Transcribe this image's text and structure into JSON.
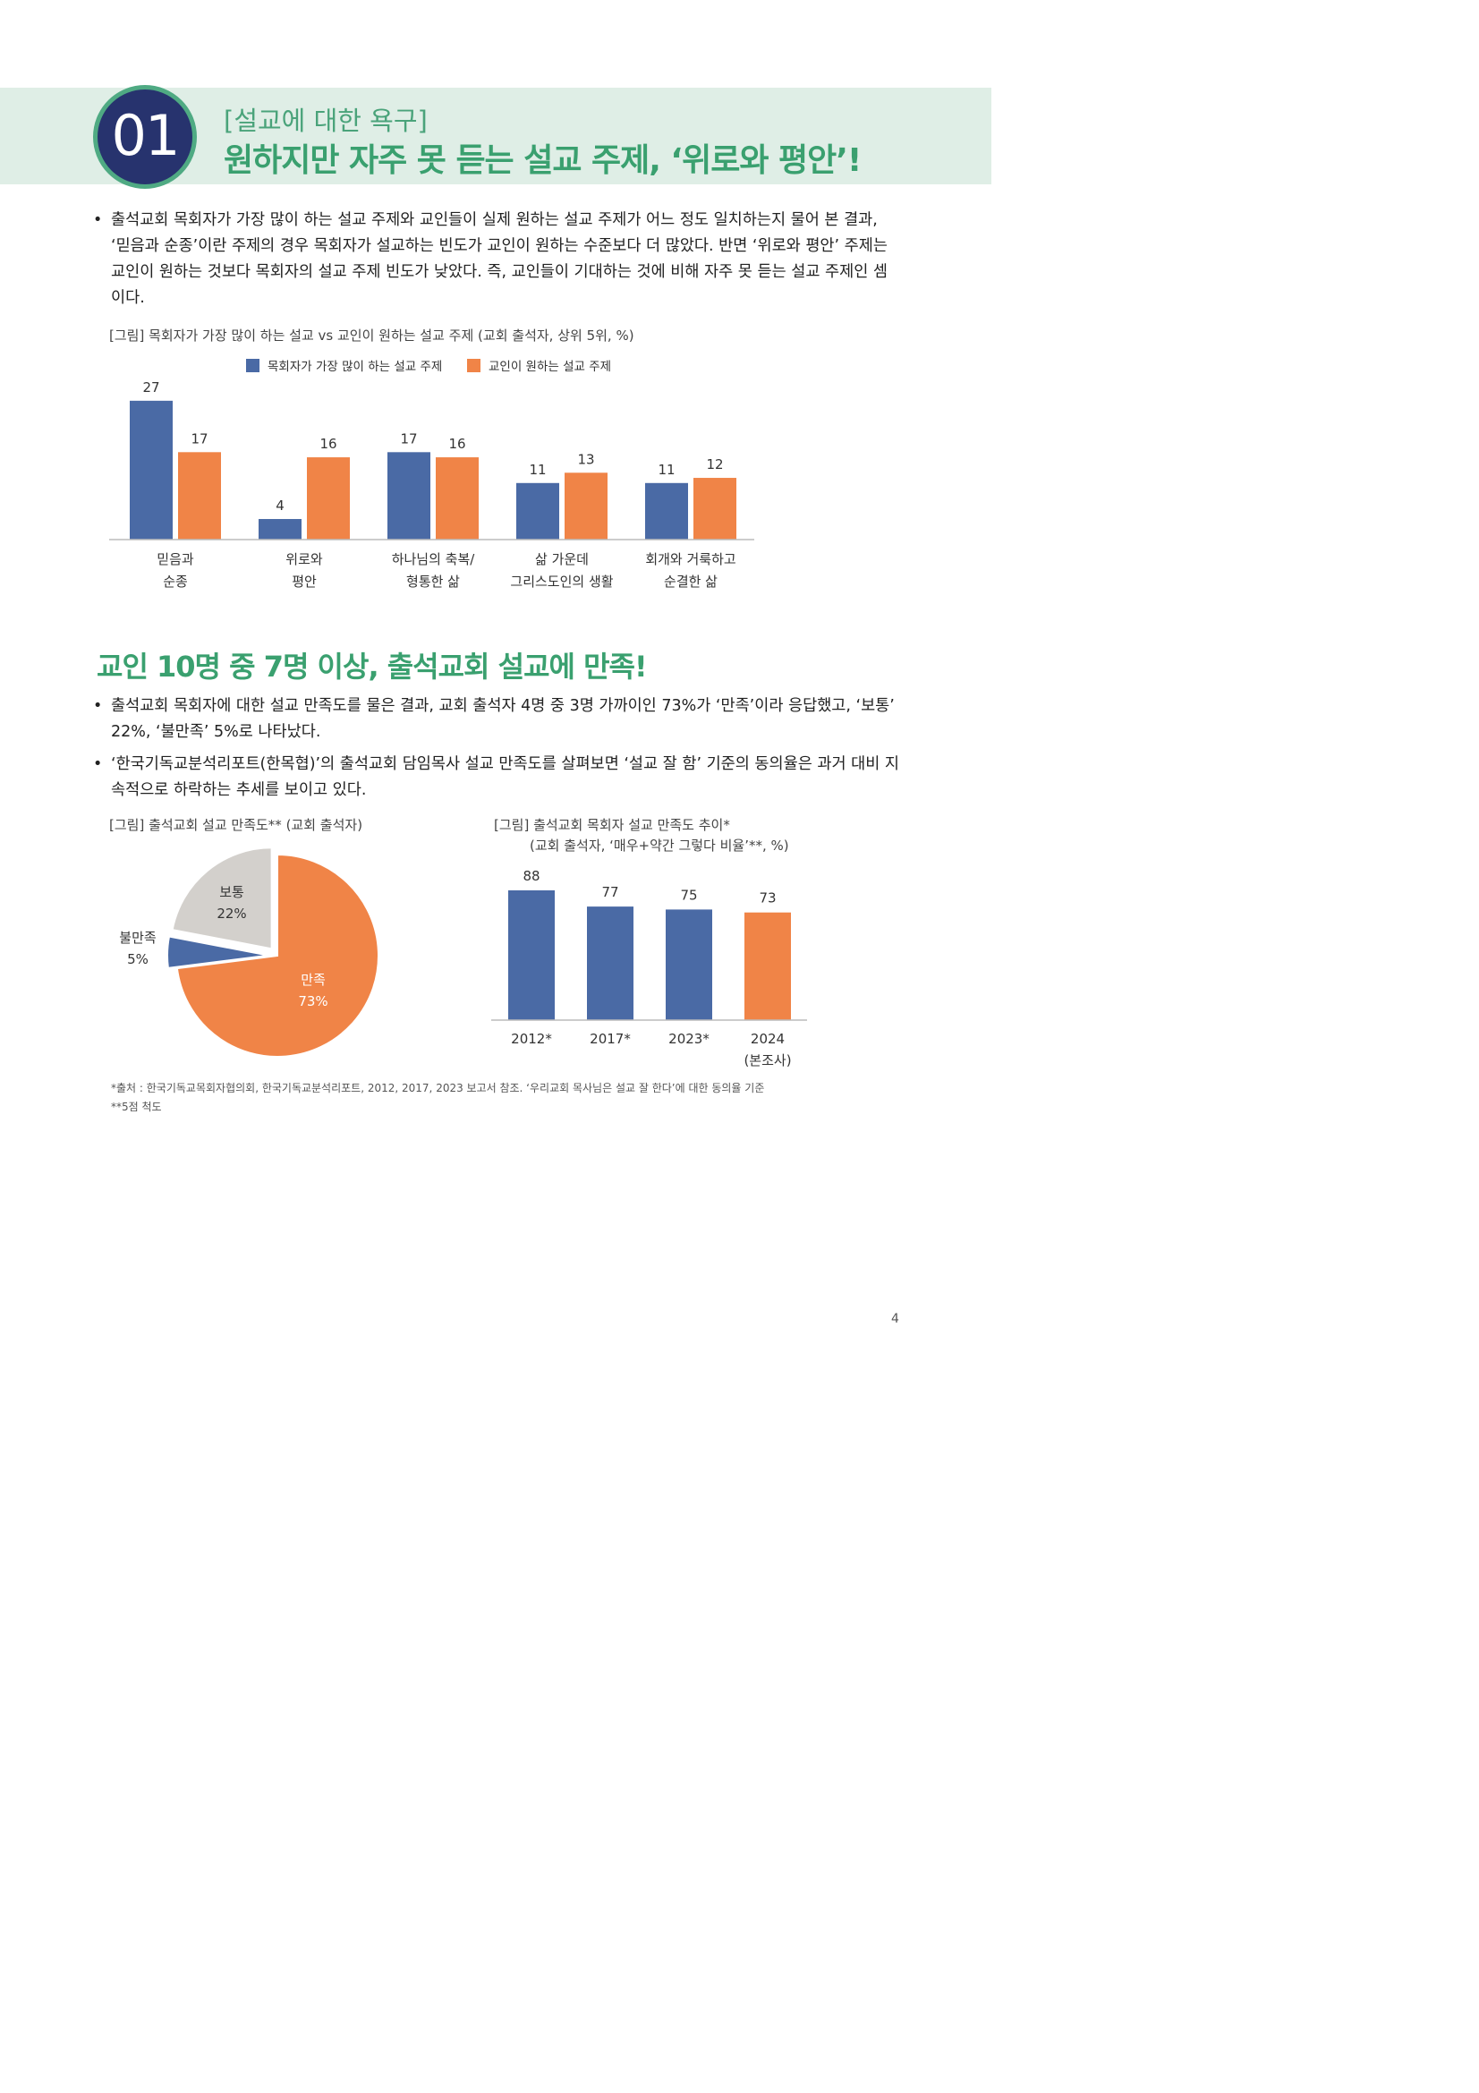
{
  "header": {
    "badge": "01",
    "subtitle": "[설교에 대한 욕구]",
    "title": "원하지만 자주 못 듣는 설교 주제, ‘위로와 평안’!"
  },
  "section1": {
    "bullet": "출석교회 목회자가 가장 많이 하는 설교 주제와 교인들이 실제 원하는 설교 주제가 어느 정도 일치하는지 물어 본 결과, ‘믿음과 순종’이란 주제의 경우 목회자가 설교하는 빈도가 교인이 원하는 수준보다 더 많았다. 반면 ‘위로와 평안’ 주제는 교인이 원하는 것보다 목회자의 설교 주제 빈도가 낮았다. 즉, 교인들이 기대하는 것에 비해 자주 못 듣는 설교 주제인 셈이다.",
    "figure_caption": "[그림] 목회자가 가장 많이 하는 설교 vs 교인이 원하는 설교 주제 (교회 출석자, 상위 5위, %)"
  },
  "section2": {
    "title": "교인 10명 중 7명 이상, 출석교회 설교에 만족!",
    "bullets": [
      "출석교회 목회자에 대한 설교 만족도를 물은 결과, 교회 출석자 4명 중 3명 가까이인 73%가 ‘만족’이라 응답했고, ‘보통’ 22%, ‘불만족’ 5%로 나타났다.",
      "‘한국기독교분석리포트(한목협)’의 출석교회 담임목사 설교 만족도를 살펴보면 ‘설교 잘 함’ 기준의 동의율은 과거 대비 지속적으로 하락하는 추세를 보이고 있다."
    ],
    "pie_caption": "[그림] 출석교회 설교 만족도** (교회 출석자)",
    "trend_caption_1": "[그림] 출석교회 목회자 설교 만족도 추이*",
    "trend_caption_2": "(교회 출석자, ‘매우+약간 그렇다 비율’**, %)"
  },
  "footnotes": [
    "*출처 : 한국기독교목회자협의회, 한국기독교분석리포트, 2012, 2017, 2023 보고서 참조. ‘우리교회 목사님은 설교 잘 한다’에 대한 동의율 기준",
    "**5점 척도"
  ],
  "page_number": "4",
  "colors": {
    "blue": "#4a6aa5",
    "orange": "#f08447",
    "gray": "#d3d0cc",
    "green": "#3aa06f",
    "navy": "#27336e"
  },
  "chart_data": [
    {
      "type": "bar",
      "categories": [
        [
          "믿음과",
          "순종"
        ],
        [
          "위로와",
          "평안"
        ],
        [
          "하나님의 축복/",
          "형통한 삶"
        ],
        [
          "삶 가운데",
          "그리스도인의 생활"
        ],
        [
          "회개와 거룩하고",
          "순결한 삶"
        ]
      ],
      "series": [
        {
          "name": "목회자가 가장 많이 하는 설교 주제",
          "values": [
            27,
            4,
            17,
            11,
            11
          ],
          "color": "#4a6aa5"
        },
        {
          "name": "교인이 원하는 설교 주제",
          "values": [
            17,
            16,
            16,
            13,
            12
          ],
          "color": "#f08447"
        }
      ],
      "ylim": [
        0,
        30
      ],
      "legend": "top"
    },
    {
      "type": "pie",
      "labels": [
        "만족",
        "불만족",
        "보통"
      ],
      "values": [
        73,
        5,
        22
      ],
      "value_labels": [
        "73%",
        "5%",
        "22%"
      ],
      "colors": [
        "#f08447",
        "#4a6aa5",
        "#d3d0cc"
      ]
    },
    {
      "type": "bar",
      "categories": [
        [
          "2012*"
        ],
        [
          "2017*"
        ],
        [
          "2023*"
        ],
        [
          "2024",
          "(본조사)"
        ]
      ],
      "values": [
        88,
        77,
        75,
        73
      ],
      "colors": [
        "#4a6aa5",
        "#4a6aa5",
        "#4a6aa5",
        "#f08447"
      ],
      "ylim": [
        0,
        100
      ]
    }
  ]
}
